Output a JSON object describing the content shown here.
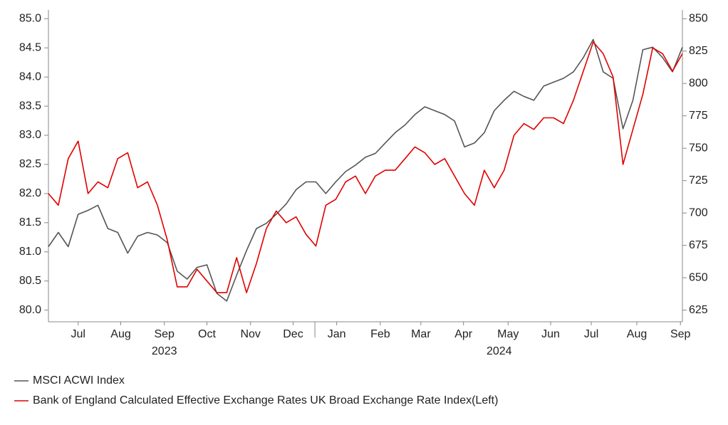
{
  "chart_data": {
    "type": "line",
    "x": [
      0,
      1,
      2,
      3,
      4,
      5,
      6,
      7,
      8,
      9,
      10,
      11,
      12,
      13,
      14,
      15,
      16,
      17,
      18,
      19,
      20,
      21,
      22,
      23,
      24,
      25,
      26,
      27,
      28,
      29,
      30,
      31,
      32,
      33,
      34,
      35,
      36,
      37,
      38,
      39,
      40,
      41,
      42,
      43,
      44,
      45,
      46,
      47,
      48,
      49,
      50,
      51,
      52,
      53,
      54,
      55,
      56,
      57,
      58,
      59,
      60,
      61,
      62,
      63,
      64
    ],
    "xlim": [
      0,
      64
    ],
    "xticks": [
      {
        "value": 3.0,
        "label": "Jul"
      },
      {
        "value": 7.3,
        "label": "Aug"
      },
      {
        "value": 11.7,
        "label": "Sep"
      },
      {
        "value": 16.0,
        "label": "Oct"
      },
      {
        "value": 20.4,
        "label": "Nov"
      },
      {
        "value": 24.7,
        "label": "Dec"
      },
      {
        "value": 29.1,
        "label": "Jan"
      },
      {
        "value": 33.5,
        "label": "Feb"
      },
      {
        "value": 37.6,
        "label": "Mar"
      },
      {
        "value": 41.9,
        "label": "Apr"
      },
      {
        "value": 46.4,
        "label": "May"
      },
      {
        "value": 50.7,
        "label": "Jun"
      },
      {
        "value": 54.8,
        "label": "Jul"
      },
      {
        "value": 59.4,
        "label": "Aug"
      },
      {
        "value": 63.8,
        "label": "Sep"
      }
    ],
    "x_group_labels": [
      {
        "value": 11.7,
        "label": "2023"
      },
      {
        "value": 45.5,
        "label": "2024"
      }
    ],
    "ylim": [
      79.8,
      85.15
    ],
    "yticks": [
      {
        "value": 80,
        "label": "80.0"
      },
      {
        "value": 80.5,
        "label": "80.5"
      },
      {
        "value": 81,
        "label": "81.0"
      },
      {
        "value": 81.5,
        "label": "81.5"
      },
      {
        "value": 82,
        "label": "82.0"
      },
      {
        "value": 82.5,
        "label": "82.5"
      },
      {
        "value": 83,
        "label": "83.0"
      },
      {
        "value": 83.5,
        "label": "83.5"
      },
      {
        "value": 84,
        "label": "84.0"
      },
      {
        "value": 84.5,
        "label": "84.5"
      },
      {
        "value": 85,
        "label": "85.0"
      }
    ],
    "y2lim": [
      616,
      856.75
    ],
    "y2ticks": [
      625,
      650,
      675,
      700,
      725,
      750,
      775,
      800,
      825,
      850
    ],
    "series": [
      {
        "name": "MSCI ACWI Index",
        "color": "#555555",
        "axis": "y2",
        "values": [
          674,
          685,
          674,
          699,
          702,
          706,
          688,
          685,
          669,
          682,
          685,
          683,
          677,
          655,
          649,
          658,
          660,
          638,
          632,
          652,
          671,
          688,
          692,
          699,
          707,
          718,
          724,
          724,
          715,
          724,
          732,
          737,
          743,
          746,
          754,
          762,
          768,
          776,
          782,
          779,
          776,
          771,
          751,
          754,
          762,
          779,
          787,
          794,
          790,
          787,
          798,
          801,
          804,
          809,
          820,
          834,
          809,
          804,
          765,
          787,
          826,
          828,
          820,
          809,
          828
        ]
      },
      {
        "name": "Bank of England Calculated Effective Exchange Rates UK Broad Exchange Rate Index(Left)",
        "color": "#e00000",
        "values": [
          82.0,
          81.8,
          82.6,
          82.9,
          82.0,
          82.2,
          82.1,
          82.6,
          82.7,
          82.1,
          82.2,
          81.8,
          81.2,
          80.4,
          80.4,
          80.7,
          80.5,
          80.3,
          80.3,
          80.9,
          80.3,
          80.8,
          81.4,
          81.7,
          81.5,
          81.6,
          81.3,
          81.1,
          81.8,
          81.9,
          82.2,
          82.3,
          82.0,
          82.3,
          82.4,
          82.4,
          82.6,
          82.8,
          82.7,
          82.5,
          82.6,
          82.3,
          82.0,
          81.8,
          82.4,
          82.1,
          82.4,
          83.0,
          83.2,
          83.1,
          83.3,
          83.3,
          83.2,
          83.6,
          84.1,
          84.6,
          84.4,
          84.0,
          82.5,
          83.1,
          83.7,
          84.5,
          84.4,
          84.1,
          84.4
        ]
      }
    ]
  }
}
